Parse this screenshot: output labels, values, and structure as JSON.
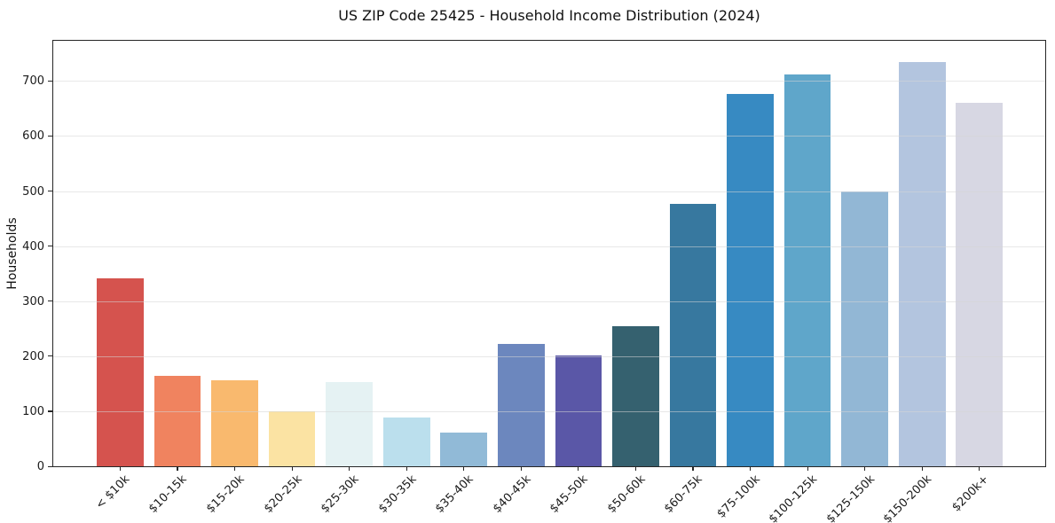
{
  "chart_data": {
    "type": "bar",
    "title": "US ZIP Code 25425 - Household Income Distribution (2024)",
    "xlabel": "",
    "ylabel": "Households",
    "categories": [
      "< $10k",
      "$10-15k",
      "$15-20k",
      "$20-25k",
      "$25-30k",
      "$30-35k",
      "$35-40k",
      "$40-45k",
      "$45-50k",
      "$50-60k",
      "$60-75k",
      "$75-100k",
      "$100-125k",
      "$125-150k",
      "$150-200k",
      "$200k+"
    ],
    "values": [
      341,
      165,
      157,
      100,
      153,
      88,
      62,
      223,
      202,
      255,
      476,
      676,
      712,
      500,
      735,
      660
    ],
    "bar_colors": [
      "#d5534e",
      "#f0835f",
      "#f9b96e",
      "#fbe3a3",
      "#e5f2f3",
      "#bbdfed",
      "#91bad7",
      "#6c87be",
      "#5a57a7",
      "#35616f",
      "#37789f",
      "#378ac2",
      "#5fa6ca",
      "#92b7d5",
      "#b3c5df",
      "#d7d7e3"
    ],
    "ylim": [
      0,
      773
    ],
    "yticks": [
      0,
      100,
      200,
      300,
      400,
      500,
      600,
      700
    ],
    "grid": "horizontal",
    "legend_position": "none",
    "x_tick_rotation_deg": 45,
    "axis_color": "#262626",
    "background": "#ffffff"
  }
}
